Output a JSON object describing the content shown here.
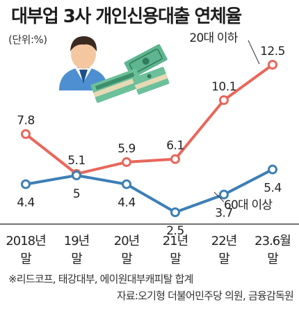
{
  "title": "대부업 3사 개인신용대출 연체율",
  "unit": "(단위:%)",
  "chart_data": {
    "type": "line",
    "title": "대부업 3사 개인신용대출 연체율",
    "categories": [
      [
        "2018년",
        "말"
      ],
      [
        "19년",
        "말"
      ],
      [
        "20년",
        "말"
      ],
      [
        "21년",
        "말"
      ],
      [
        "22년",
        "말"
      ],
      [
        "23.6월",
        "말"
      ]
    ],
    "ylim": [
      0,
      14
    ],
    "grid": false,
    "series": [
      {
        "name": "20대 이하",
        "values": [
          7.8,
          5.1,
          5.9,
          6.1,
          10.1,
          12.5
        ],
        "color": "#e8675a",
        "label_pos": "above"
      },
      {
        "name": "60대 이상",
        "values": [
          4.4,
          5.0,
          4.4,
          2.5,
          3.7,
          5.4
        ],
        "color": "#3d7fb5",
        "label_pos": "below"
      }
    ]
  },
  "footnotes": {
    "note": "※리드코프, 태강대부, 에이원대부캐피탈 합계",
    "source": "자료:오기형 더불어민주당 의원, 금융감독원"
  },
  "illustration": {
    "icons": [
      "person-icon",
      "money-bundle-icon"
    ]
  }
}
